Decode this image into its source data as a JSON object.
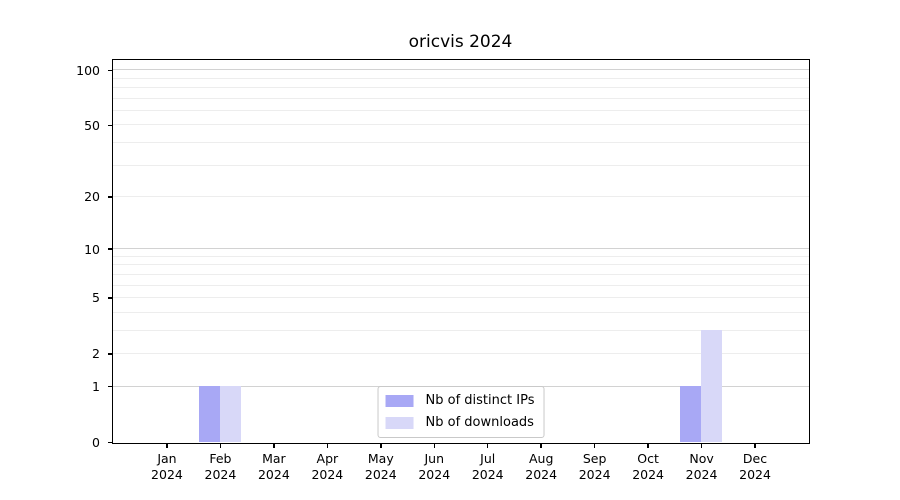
{
  "chart_data": {
    "type": "bar",
    "title": "oricvis 2024",
    "categories": [
      "Jan\n2024",
      "Feb\n2024",
      "Mar\n2024",
      "Apr\n2024",
      "May\n2024",
      "Jun\n2024",
      "Jul\n2024",
      "Aug\n2024",
      "Sep\n2024",
      "Oct\n2024",
      "Nov\n2024",
      "Dec\n2024"
    ],
    "series": [
      {
        "name": "Nb of distinct IPs",
        "color": "#a8a8f5",
        "values": [
          0,
          1,
          0,
          0,
          0,
          0,
          0,
          0,
          0,
          0,
          1,
          0
        ]
      },
      {
        "name": "Nb of downloads",
        "color": "#d8d8f8",
        "values": [
          0,
          1,
          0,
          0,
          0,
          0,
          0,
          0,
          0,
          0,
          3,
          0
        ]
      }
    ],
    "xlabel": "",
    "ylabel": "",
    "yscale": "log10(1+y)",
    "ylim": [
      0,
      113
    ],
    "yticks": [
      0,
      1,
      2,
      5,
      10,
      20,
      50,
      100
    ],
    "gridlines_major": [
      1,
      10,
      100
    ],
    "gridlines_minor": [
      2,
      3,
      4,
      5,
      6,
      7,
      8,
      9,
      20,
      30,
      40,
      50,
      60,
      70,
      80,
      90
    ],
    "grid": "horizontal",
    "legend_position": "lower center inside",
    "colors": {
      "grid_major": "#d2d2d2",
      "grid_minor": "#ededed",
      "spine": "#000000",
      "tick_label": "#000000",
      "background": "#ffffff"
    }
  }
}
